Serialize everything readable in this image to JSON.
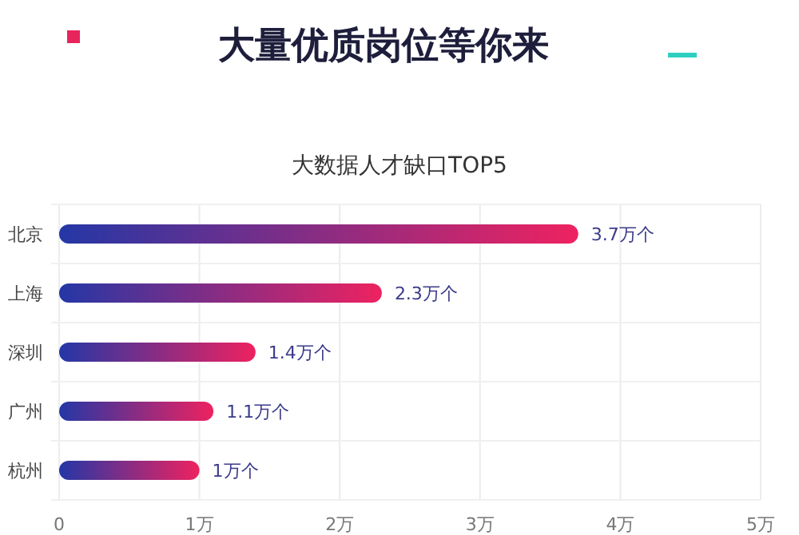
{
  "chart_data": {
    "type": "bar",
    "orientation": "horizontal",
    "title": "大量优质岗位等你来",
    "subtitle": "大数据人才缺口TOP5",
    "categories": [
      "北京",
      "上海",
      "深圳",
      "广州",
      "杭州"
    ],
    "series": [
      {
        "color": "#ee2260",
        "values": [
          3.7,
          2.3,
          1.4,
          1.1,
          1.0
        ],
        "value_labels": [
          "3.7万个",
          "2.3万个",
          "1.4万个",
          "1.1万个",
          "1万个"
        ]
      }
    ],
    "xlim": [
      0,
      5
    ],
    "xticks": [
      0,
      {
        "value": 1,
        "label": "1万"
      },
      {
        "value": 2,
        "label": "2万"
      },
      {
        "value": 3,
        "label": "3万"
      },
      {
        "value": 4,
        "label": "4万"
      },
      {
        "value": 5,
        "label": "5万"
      }
    ],
    "grid": true
  }
}
